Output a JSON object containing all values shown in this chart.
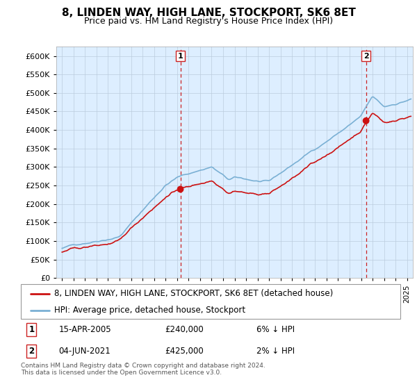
{
  "title": "8, LINDEN WAY, HIGH LANE, STOCKPORT, SK6 8ET",
  "subtitle": "Price paid vs. HM Land Registry's House Price Index (HPI)",
  "ylim": [
    0,
    625000
  ],
  "yticks": [
    0,
    50000,
    100000,
    150000,
    200000,
    250000,
    300000,
    350000,
    400000,
    450000,
    500000,
    550000,
    600000
  ],
  "hpi_color": "#7ab0d4",
  "price_color": "#cc1111",
  "vline_color": "#cc2222",
  "plot_bg_color": "#ddeeff",
  "background_color": "#ffffff",
  "grid_color": "#bbccdd",
  "legend_label_red": "8, LINDEN WAY, HIGH LANE, STOCKPORT, SK6 8ET (detached house)",
  "legend_label_blue": "HPI: Average price, detached house, Stockport",
  "transaction1_date": "15-APR-2005",
  "transaction1_price": "£240,000",
  "transaction1_pct": "6% ↓ HPI",
  "transaction1_label": "1",
  "transaction1_year": 2005.29,
  "transaction1_value": 240000,
  "transaction2_date": "04-JUN-2021",
  "transaction2_price": "£425,000",
  "transaction2_pct": "2% ↓ HPI",
  "transaction2_label": "2",
  "transaction2_year": 2021.43,
  "transaction2_value": 425000,
  "footnote1": "Contains HM Land Registry data © Crown copyright and database right 2024.",
  "footnote2": "This data is licensed under the Open Government Licence v3.0.",
  "xlim_start": 1995.0,
  "xlim_end": 2025.5
}
